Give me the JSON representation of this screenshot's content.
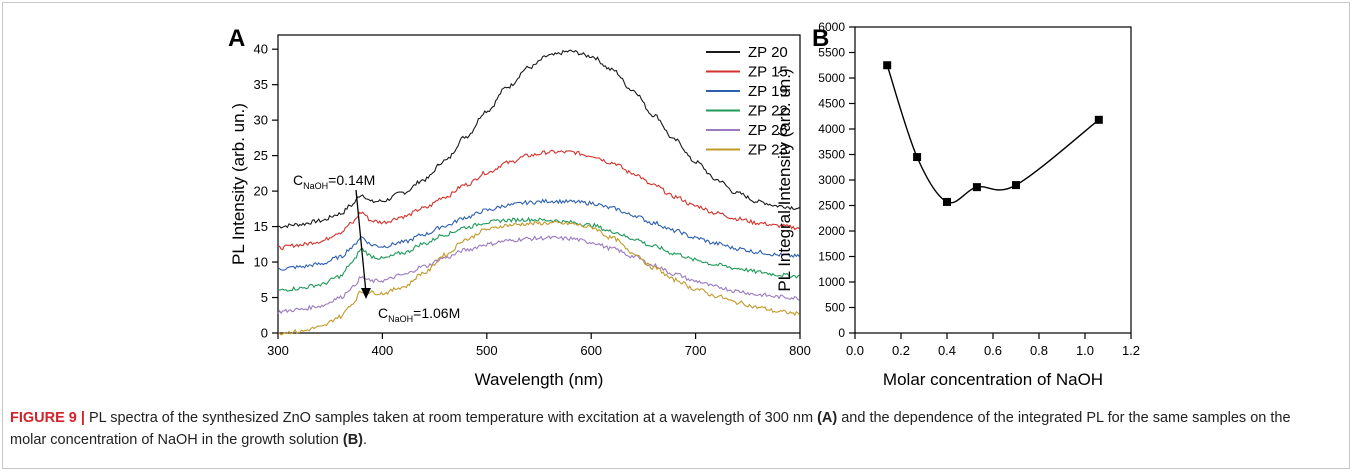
{
  "chart_data": [
    {
      "type": "line",
      "panel": "A",
      "xlabel": "Wavelength (nm)",
      "ylabel": "PL Intensity (arb. un.)",
      "xlim": [
        300,
        800
      ],
      "ylim": [
        0,
        42
      ],
      "xticks": [
        "300",
        "400",
        "500",
        "600",
        "700",
        "800"
      ],
      "yticks": [
        "0",
        "5",
        "10",
        "15",
        "20",
        "25",
        "30",
        "35",
        "40"
      ],
      "legend_position": "top-right",
      "annotation_top": {
        "prefix": "C",
        "sub": "NaOH",
        "suffix": "=0.14M"
      },
      "annotation_bottom": {
        "prefix": "C",
        "sub": "NaOH",
        "suffix": "=1.06M"
      },
      "x": [
        300,
        320,
        340,
        360,
        370,
        380,
        390,
        400,
        420,
        440,
        460,
        480,
        500,
        520,
        540,
        560,
        580,
        600,
        620,
        640,
        660,
        680,
        700,
        720,
        740,
        760,
        780,
        800
      ],
      "series": [
        {
          "name": "ZP 20",
          "color": "#1a1a1a",
          "values": [
            15.0,
            15.3,
            15.8,
            16.8,
            18.0,
            19.5,
            18.5,
            18.6,
            19.8,
            21.6,
            24.3,
            27.7,
            31.3,
            34.7,
            37.4,
            39.1,
            39.7,
            39.0,
            37.1,
            34.2,
            30.7,
            27.2,
            24.1,
            21.6,
            19.7,
            18.5,
            17.9,
            17.6
          ]
        },
        {
          "name": "ZP 15",
          "color": "#d3322d",
          "values": [
            12.0,
            12.4,
            12.9,
            14.2,
            15.4,
            17.0,
            15.8,
            15.6,
            16.4,
            17.6,
            19.2,
            20.9,
            22.6,
            24.0,
            25.0,
            25.5,
            25.5,
            25.0,
            24.0,
            22.5,
            20.8,
            19.2,
            17.9,
            16.9,
            16.1,
            15.5,
            15.1,
            14.8
          ]
        },
        {
          "name": "ZP 19",
          "color": "#2e60b0",
          "values": [
            9.0,
            9.3,
            9.7,
            10.7,
            12.0,
            13.5,
            12.4,
            12.2,
            12.8,
            13.9,
            15.1,
            16.3,
            17.3,
            18.0,
            18.4,
            18.6,
            18.5,
            18.3,
            17.6,
            16.6,
            15.5,
            14.4,
            13.4,
            12.6,
            11.9,
            11.4,
            11.0,
            10.8
          ]
        },
        {
          "name": "ZP 22",
          "color": "#1e9a5a",
          "values": [
            6.0,
            6.3,
            6.8,
            8.0,
            9.8,
            11.8,
            10.8,
            10.5,
            11.3,
            12.6,
            13.9,
            14.9,
            15.6,
            15.9,
            16.0,
            15.9,
            15.6,
            15.2,
            14.3,
            13.3,
            12.2,
            11.2,
            10.3,
            9.6,
            9.1,
            8.6,
            8.2,
            8.0
          ]
        },
        {
          "name": "ZP 26",
          "color": "#9b7bc0",
          "values": [
            3.0,
            3.3,
            3.8,
            5.0,
            6.3,
            7.8,
            7.3,
            7.4,
            8.2,
            9.4,
            10.6,
            11.7,
            12.5,
            13.0,
            13.3,
            13.4,
            13.3,
            12.8,
            11.9,
            10.8,
            9.5,
            8.3,
            7.3,
            6.5,
            5.9,
            5.4,
            5.1,
            4.9
          ]
        },
        {
          "name": "ZP 23",
          "color": "#c19a2b",
          "values": [
            0.0,
            0.2,
            0.8,
            2.3,
            4.0,
            5.8,
            5.7,
            5.6,
            6.5,
            8.5,
            11.0,
            13.2,
            14.6,
            15.2,
            15.4,
            15.5,
            15.4,
            14.9,
            13.4,
            11.3,
            9.2,
            7.5,
            6.2,
            5.2,
            4.3,
            3.6,
            3.0,
            2.7
          ]
        }
      ]
    },
    {
      "type": "scatter",
      "panel": "B",
      "xlabel": "Molar concentration of NaOH",
      "ylabel": "PL Integral Intensity (arb. un.)",
      "xlim": [
        0.0,
        1.2
      ],
      "ylim": [
        0,
        6000
      ],
      "xticks": [
        "0.0",
        "0.2",
        "0.4",
        "0.6",
        "0.8",
        "1.0",
        "1.2"
      ],
      "yticks": [
        "0",
        "500",
        "1000",
        "1500",
        "2000",
        "2500",
        "3000",
        "3500",
        "4000",
        "4500",
        "5000",
        "5500",
        "6000"
      ],
      "x": [
        0.14,
        0.27,
        0.4,
        0.53,
        0.7,
        1.06
      ],
      "y": [
        5250,
        3450,
        2570,
        2860,
        2900,
        4180
      ],
      "fit_line": "smooth spline",
      "color": "#000000"
    }
  ],
  "caption": {
    "label": "FIGURE 9 |",
    "part1": " PL spectra of the synthesized ZnO samples taken at room temperature with excitation at a wavelength of 300 nm ",
    "tag_a": "(A)",
    "part2": " and the dependence of the integrated PL for the same samples on the molar concentration of NaOH in the growth solution ",
    "tag_b": "(B)",
    "part3": "."
  }
}
